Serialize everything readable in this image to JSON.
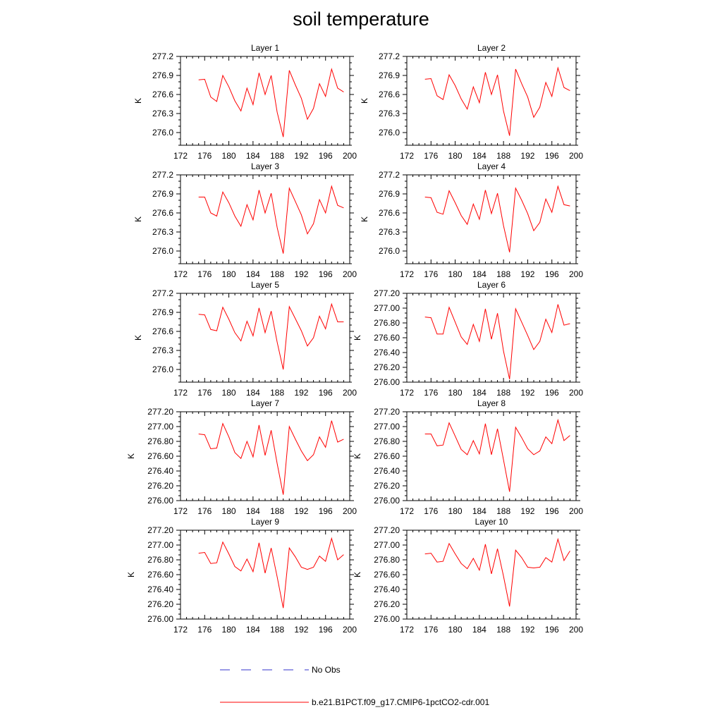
{
  "title": "soil temperature",
  "legend": {
    "placement": "bottom",
    "items": [
      {
        "label": "No Obs",
        "color": "#3333cc",
        "style": "dashed"
      },
      {
        "label": "b.e21.B1PCT.f09_g17.CMIP6-1pctCO2-cdr.001",
        "color": "#ff0000",
        "style": "solid"
      }
    ]
  },
  "chart_data": [
    {
      "type": "line",
      "title": "Layer 1",
      "ylabel": "K",
      "xlim": [
        172,
        200
      ],
      "ylim": [
        275.8,
        277.2
      ],
      "xticks": [
        "172",
        "176",
        "180",
        "184",
        "188",
        "192",
        "196",
        "200"
      ],
      "yticks": [
        "276.0",
        "276.3",
        "276.6",
        "276.9",
        "277.2"
      ],
      "x": [
        175,
        176,
        177,
        178,
        179,
        180,
        181,
        182,
        183,
        184,
        185,
        186,
        187,
        188,
        189,
        190,
        191,
        192,
        193,
        194,
        195,
        196,
        197,
        198,
        199
      ],
      "series": [
        {
          "name": "b.e21.B1PCT.f09_g17.CMIP6-1pctCO2-cdr.001",
          "color": "#ff0000",
          "values": [
            276.83,
            276.84,
            276.56,
            276.49,
            276.9,
            276.72,
            276.5,
            276.34,
            276.7,
            276.44,
            276.94,
            276.6,
            276.9,
            276.32,
            275.93,
            276.98,
            276.75,
            276.54,
            276.21,
            276.38,
            276.77,
            276.57,
            277.0,
            276.7,
            276.64
          ]
        }
      ]
    },
    {
      "type": "line",
      "title": "Layer 2",
      "ylabel": "K",
      "xlim": [
        172,
        200
      ],
      "ylim": [
        275.8,
        277.2
      ],
      "xticks": [
        "172",
        "176",
        "180",
        "184",
        "188",
        "192",
        "196",
        "200"
      ],
      "yticks": [
        "276.0",
        "276.3",
        "276.6",
        "276.9",
        "277.2"
      ],
      "x": [
        175,
        176,
        177,
        178,
        179,
        180,
        181,
        182,
        183,
        184,
        185,
        186,
        187,
        188,
        189,
        190,
        191,
        192,
        193,
        194,
        195,
        196,
        197,
        198,
        199
      ],
      "series": [
        {
          "name": "b.e21.B1PCT.f09_g17.CMIP6-1pctCO2-cdr.001",
          "color": "#ff0000",
          "values": [
            276.84,
            276.85,
            276.58,
            276.52,
            276.91,
            276.74,
            276.53,
            276.37,
            276.72,
            276.47,
            276.95,
            276.6,
            276.91,
            276.34,
            275.95,
            277.0,
            276.77,
            276.56,
            276.24,
            276.4,
            276.79,
            276.57,
            277.02,
            276.71,
            276.66
          ]
        }
      ]
    },
    {
      "type": "line",
      "title": "Layer 3",
      "ylabel": "K",
      "xlim": [
        172,
        200
      ],
      "ylim": [
        275.8,
        277.2
      ],
      "xticks": [
        "172",
        "176",
        "180",
        "184",
        "188",
        "192",
        "196",
        "200"
      ],
      "yticks": [
        "276.0",
        "276.3",
        "276.6",
        "276.9",
        "277.2"
      ],
      "x": [
        175,
        176,
        177,
        178,
        179,
        180,
        181,
        182,
        183,
        184,
        185,
        186,
        187,
        188,
        189,
        190,
        191,
        192,
        193,
        194,
        195,
        196,
        197,
        198,
        199
      ],
      "series": [
        {
          "name": "b.e21.B1PCT.f09_g17.CMIP6-1pctCO2-cdr.001",
          "color": "#ff0000",
          "values": [
            276.85,
            276.85,
            276.6,
            276.55,
            276.93,
            276.76,
            276.55,
            276.39,
            276.73,
            276.49,
            276.96,
            276.6,
            276.91,
            276.37,
            275.96,
            276.99,
            276.78,
            276.57,
            276.27,
            276.43,
            276.81,
            276.6,
            277.02,
            276.72,
            276.68
          ]
        }
      ]
    },
    {
      "type": "line",
      "title": "Layer 4",
      "ylabel": "K",
      "xlim": [
        172,
        200
      ],
      "ylim": [
        275.8,
        277.2
      ],
      "xticks": [
        "172",
        "176",
        "180",
        "184",
        "188",
        "192",
        "196",
        "200"
      ],
      "yticks": [
        "276.0",
        "276.3",
        "276.6",
        "276.9",
        "277.2"
      ],
      "x": [
        175,
        176,
        177,
        178,
        179,
        180,
        181,
        182,
        183,
        184,
        185,
        186,
        187,
        188,
        189,
        190,
        191,
        192,
        193,
        194,
        195,
        196,
        197,
        198,
        199
      ],
      "series": [
        {
          "name": "b.e21.B1PCT.f09_g17.CMIP6-1pctCO2-cdr.001",
          "color": "#ff0000",
          "values": [
            276.85,
            276.84,
            276.61,
            276.58,
            276.95,
            276.76,
            276.56,
            276.42,
            276.74,
            276.5,
            276.96,
            276.59,
            276.91,
            276.4,
            275.98,
            276.99,
            276.8,
            276.59,
            276.32,
            276.45,
            276.82,
            276.61,
            277.02,
            276.73,
            276.71
          ]
        }
      ]
    },
    {
      "type": "line",
      "title": "Layer 5",
      "ylabel": "K",
      "xlim": [
        172,
        200
      ],
      "ylim": [
        275.8,
        277.2
      ],
      "xticks": [
        "172",
        "176",
        "180",
        "184",
        "188",
        "192",
        "196",
        "200"
      ],
      "yticks": [
        "276.0",
        "276.3",
        "276.6",
        "276.9",
        "277.2"
      ],
      "x": [
        175,
        176,
        177,
        178,
        179,
        180,
        181,
        182,
        183,
        184,
        185,
        186,
        187,
        188,
        189,
        190,
        191,
        192,
        193,
        194,
        195,
        196,
        197,
        198,
        199
      ],
      "series": [
        {
          "name": "b.e21.B1PCT.f09_g17.CMIP6-1pctCO2-cdr.001",
          "color": "#ff0000",
          "values": [
            276.87,
            276.86,
            276.63,
            276.61,
            276.98,
            276.79,
            276.58,
            276.45,
            276.76,
            276.53,
            276.97,
            276.58,
            276.92,
            276.43,
            276.0,
            276.99,
            276.8,
            276.61,
            276.37,
            276.5,
            276.84,
            276.64,
            277.03,
            276.75,
            276.75
          ]
        }
      ]
    },
    {
      "type": "line",
      "title": "Layer 6",
      "ylabel": "K",
      "xlim": [
        172,
        200
      ],
      "ylim": [
        276.0,
        277.2
      ],
      "xticks": [
        "172",
        "176",
        "180",
        "184",
        "188",
        "192",
        "196",
        "200"
      ],
      "yticks": [
        "276.00",
        "276.20",
        "276.40",
        "276.60",
        "276.80",
        "277.00",
        "277.20"
      ],
      "x": [
        175,
        176,
        177,
        178,
        179,
        180,
        181,
        182,
        183,
        184,
        185,
        186,
        187,
        188,
        189,
        190,
        191,
        192,
        193,
        194,
        195,
        196,
        197,
        198,
        199
      ],
      "series": [
        {
          "name": "b.e21.B1PCT.f09_g17.CMIP6-1pctCO2-cdr.001",
          "color": "#ff0000",
          "values": [
            276.88,
            276.87,
            276.65,
            276.65,
            277.01,
            276.81,
            276.61,
            276.51,
            276.78,
            276.55,
            276.99,
            276.58,
            276.93,
            276.42,
            276.04,
            276.99,
            276.81,
            276.63,
            276.44,
            276.55,
            276.85,
            276.67,
            277.05,
            276.77,
            276.79
          ]
        }
      ]
    },
    {
      "type": "line",
      "title": "Layer 7",
      "ylabel": "K",
      "xlim": [
        172,
        200
      ],
      "ylim": [
        276.0,
        277.2
      ],
      "xticks": [
        "172",
        "176",
        "180",
        "184",
        "188",
        "192",
        "196",
        "200"
      ],
      "yticks": [
        "276.00",
        "276.20",
        "276.40",
        "276.60",
        "276.80",
        "277.00",
        "277.20"
      ],
      "x": [
        175,
        176,
        177,
        178,
        179,
        180,
        181,
        182,
        183,
        184,
        185,
        186,
        187,
        188,
        189,
        190,
        191,
        192,
        193,
        194,
        195,
        196,
        197,
        198,
        199
      ],
      "series": [
        {
          "name": "b.e21.B1PCT.f09_g17.CMIP6-1pctCO2-cdr.001",
          "color": "#ff0000",
          "values": [
            276.9,
            276.89,
            276.7,
            276.71,
            277.04,
            276.86,
            276.65,
            276.57,
            276.8,
            276.59,
            277.02,
            276.61,
            276.95,
            276.5,
            276.08,
            277.0,
            276.83,
            276.67,
            276.54,
            276.62,
            276.86,
            276.72,
            277.08,
            276.79,
            276.83
          ]
        }
      ]
    },
    {
      "type": "line",
      "title": "Layer 8",
      "ylabel": "K",
      "xlim": [
        172,
        200
      ],
      "ylim": [
        276.0,
        277.2
      ],
      "xticks": [
        "172",
        "176",
        "180",
        "184",
        "188",
        "192",
        "196",
        "200"
      ],
      "yticks": [
        "276.00",
        "276.20",
        "276.40",
        "276.60",
        "276.80",
        "277.00",
        "277.20"
      ],
      "x": [
        175,
        176,
        177,
        178,
        179,
        180,
        181,
        182,
        183,
        184,
        185,
        186,
        187,
        188,
        189,
        190,
        191,
        192,
        193,
        194,
        195,
        196,
        197,
        198,
        199
      ],
      "series": [
        {
          "name": "b.e21.B1PCT.f09_g17.CMIP6-1pctCO2-cdr.001",
          "color": "#ff0000",
          "values": [
            276.9,
            276.9,
            276.74,
            276.75,
            277.05,
            276.87,
            276.69,
            276.62,
            276.81,
            276.63,
            277.04,
            276.62,
            276.97,
            276.55,
            276.12,
            276.99,
            276.85,
            276.7,
            276.62,
            276.67,
            276.86,
            276.77,
            277.09,
            276.81,
            276.88
          ]
        }
      ]
    },
    {
      "type": "line",
      "title": "Layer 9",
      "ylabel": "K",
      "xlim": [
        172,
        200
      ],
      "ylim": [
        276.0,
        277.2
      ],
      "xticks": [
        "172",
        "176",
        "180",
        "184",
        "188",
        "192",
        "196",
        "200"
      ],
      "yticks": [
        "276.00",
        "276.20",
        "276.40",
        "276.60",
        "276.80",
        "277.00",
        "277.20"
      ],
      "x": [
        175,
        176,
        177,
        178,
        179,
        180,
        181,
        182,
        183,
        184,
        185,
        186,
        187,
        188,
        189,
        190,
        191,
        192,
        193,
        194,
        195,
        196,
        197,
        198,
        199
      ],
      "series": [
        {
          "name": "b.e21.B1PCT.f09_g17.CMIP6-1pctCO2-cdr.001",
          "color": "#ff0000",
          "values": [
            276.89,
            276.9,
            276.75,
            276.76,
            277.04,
            276.88,
            276.71,
            276.65,
            276.81,
            276.64,
            277.03,
            276.62,
            276.96,
            276.57,
            276.15,
            276.96,
            276.84,
            276.7,
            276.67,
            276.7,
            276.85,
            276.78,
            277.09,
            276.8,
            276.87
          ]
        }
      ]
    },
    {
      "type": "line",
      "title": "Layer 10",
      "ylabel": "K",
      "xlim": [
        172,
        200
      ],
      "ylim": [
        276.0,
        277.2
      ],
      "xticks": [
        "172",
        "176",
        "180",
        "184",
        "188",
        "192",
        "196",
        "200"
      ],
      "yticks": [
        "276.00",
        "276.20",
        "276.40",
        "276.60",
        "276.80",
        "277.00",
        "277.20"
      ],
      "x": [
        175,
        176,
        177,
        178,
        179,
        180,
        181,
        182,
        183,
        184,
        185,
        186,
        187,
        188,
        189,
        190,
        191,
        192,
        193,
        194,
        195,
        196,
        197,
        198,
        199
      ],
      "series": [
        {
          "name": "b.e21.B1PCT.f09_g17.CMIP6-1pctCO2-cdr.001",
          "color": "#ff0000",
          "values": [
            276.88,
            276.89,
            276.77,
            276.78,
            277.02,
            276.88,
            276.75,
            276.68,
            276.82,
            276.66,
            277.01,
            276.61,
            276.95,
            276.58,
            276.17,
            276.93,
            276.83,
            276.7,
            276.69,
            276.7,
            276.83,
            276.77,
            277.08,
            276.79,
            276.92
          ]
        }
      ]
    }
  ]
}
